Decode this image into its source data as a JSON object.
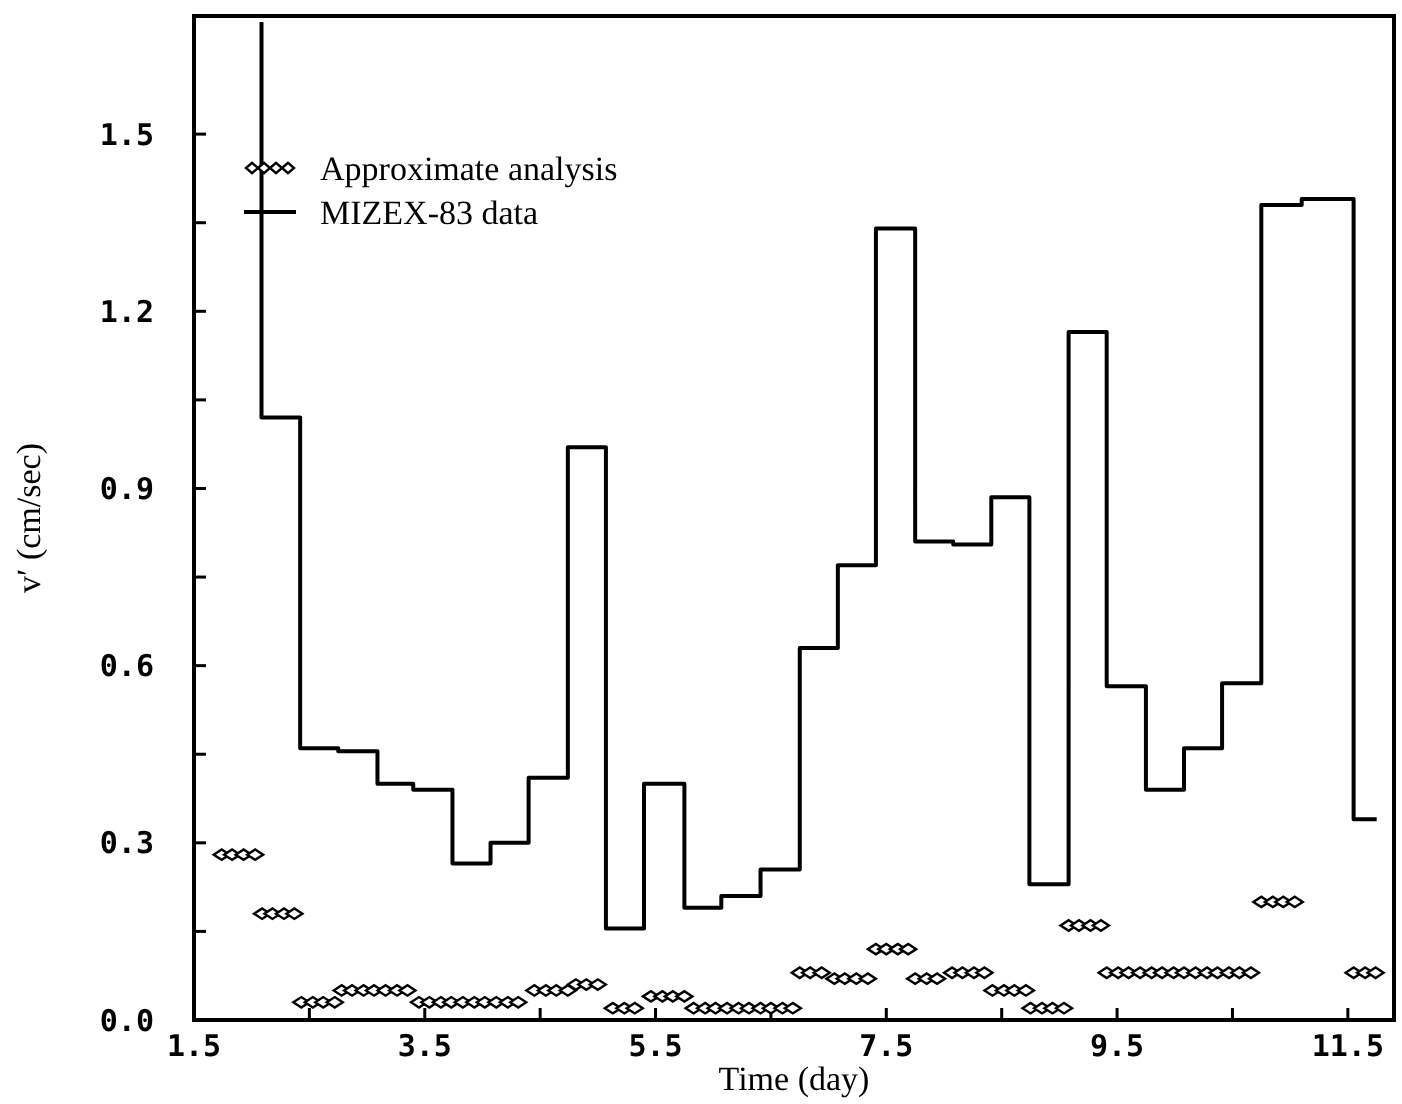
{
  "chart_data": {
    "xlabel": "Time (day)",
    "ylabel": "v′ (cm/sec)",
    "xlim": [
      1.5,
      11.9
    ],
    "ylim": [
      0,
      1.7
    ],
    "xticks": [
      1.5,
      {
        "value": 2.5,
        "label": null
      },
      3.5,
      {
        "value": 4.5,
        "label": null
      },
      5.5,
      {
        "value": 6.5,
        "label": null
      },
      7.5,
      {
        "value": 8.5,
        "label": null
      },
      9.5,
      {
        "value": 10.5,
        "label": null
      },
      11.5
    ],
    "yticks": [
      {
        "value": 0,
        "label": "0.0"
      },
      {
        "value": 0.15,
        "label": null
      },
      0.3,
      {
        "value": 0.45,
        "label": null
      },
      0.6,
      {
        "value": 0.75,
        "label": null
      },
      0.9,
      {
        "value": 1.05,
        "label": null
      },
      1.2,
      {
        "value": 1.35,
        "label": null
      },
      1.5
    ],
    "legend": "top left",
    "grid": false,
    "type": "scatter",
    "series": [
      {
        "name": "Approximate analysis",
        "marker": "diamond",
        "color": "#000000",
        "x": [
          1.74,
          1.83,
          1.93,
          2.03,
          2.09,
          2.18,
          2.28,
          2.37,
          2.43,
          2.53,
          2.62,
          2.72,
          2.78,
          2.87,
          2.97,
          3.06,
          3.16,
          3.26,
          3.35,
          3.45,
          3.54,
          3.64,
          3.73,
          3.83,
          3.93,
          4.02,
          4.12,
          4.22,
          4.31,
          4.45,
          4.55,
          4.64,
          4.74,
          4.81,
          4.9,
          5.0,
          5.13,
          5.23,
          5.32,
          5.46,
          5.56,
          5.65,
          5.75,
          5.83,
          5.93,
          6.02,
          6.12,
          6.22,
          6.31,
          6.41,
          6.5,
          6.6,
          6.69,
          6.75,
          6.84,
          6.94,
          7.05,
          7.14,
          7.24,
          7.34,
          7.41,
          7.5,
          7.6,
          7.69,
          7.75,
          7.85,
          7.94,
          8.07,
          8.16,
          8.26,
          8.35,
          8.42,
          8.52,
          8.61,
          8.71,
          8.75,
          8.85,
          8.94,
          9.04,
          9.08,
          9.17,
          9.27,
          9.36,
          9.41,
          9.51,
          9.6,
          9.7,
          9.8,
          9.89,
          9.99,
          10.08,
          10.18,
          10.28,
          10.37,
          10.47,
          10.56,
          10.66,
          10.75,
          10.85,
          10.94,
          11.04,
          11.55,
          11.65,
          11.74
        ],
        "values": [
          0.28,
          0.28,
          0.28,
          0.28,
          0.18,
          0.18,
          0.18,
          0.18,
          0.03,
          0.03,
          0.03,
          0.03,
          0.05,
          0.05,
          0.05,
          0.05,
          0.05,
          0.05,
          0.05,
          0.03,
          0.03,
          0.03,
          0.03,
          0.03,
          0.03,
          0.03,
          0.03,
          0.03,
          0.03,
          0.05,
          0.05,
          0.05,
          0.05,
          0.06,
          0.06,
          0.06,
          0.02,
          0.02,
          0.02,
          0.04,
          0.04,
          0.04,
          0.04,
          0.02,
          0.02,
          0.02,
          0.02,
          0.02,
          0.02,
          0.02,
          0.02,
          0.02,
          0.02,
          0.08,
          0.08,
          0.08,
          0.07,
          0.07,
          0.07,
          0.07,
          0.12,
          0.12,
          0.12,
          0.12,
          0.07,
          0.07,
          0.07,
          0.08,
          0.08,
          0.08,
          0.08,
          0.05,
          0.05,
          0.05,
          0.05,
          0.02,
          0.02,
          0.02,
          0.02,
          0.16,
          0.16,
          0.16,
          0.16,
          0.08,
          0.08,
          0.08,
          0.08,
          0.08,
          0.08,
          0.08,
          0.08,
          0.08,
          0.08,
          0.08,
          0.08,
          0.08,
          0.08,
          0.2,
          0.2,
          0.2,
          0.2,
          0.08,
          0.08,
          0.08
        ]
      },
      {
        "name": "MIZEX-83 data",
        "type": "step",
        "marker": "none",
        "line_style": "solid",
        "color": "#000000",
        "x": [
          2.085,
          2.085,
          2.42,
          2.75,
          3.09,
          3.4,
          3.74,
          4.07,
          4.4,
          4.74,
          5.07,
          5.4,
          5.75,
          6.07,
          6.41,
          6.75,
          7.08,
          7.41,
          7.75,
          8.08,
          8.41,
          8.74,
          9.08,
          9.41,
          9.75,
          10.08,
          10.41,
          10.75,
          11.1,
          11.55,
          11.75
        ],
        "values": [
          1.69,
          1.02,
          0.46,
          0.455,
          0.4,
          0.39,
          0.265,
          0.3,
          0.41,
          0.97,
          0.155,
          0.4,
          0.19,
          0.21,
          0.255,
          0.63,
          0.77,
          1.34,
          0.81,
          0.805,
          0.885,
          0.23,
          1.165,
          0.565,
          0.39,
          0.46,
          0.57,
          1.38,
          1.39,
          0.34,
          0.34
        ]
      }
    ]
  }
}
